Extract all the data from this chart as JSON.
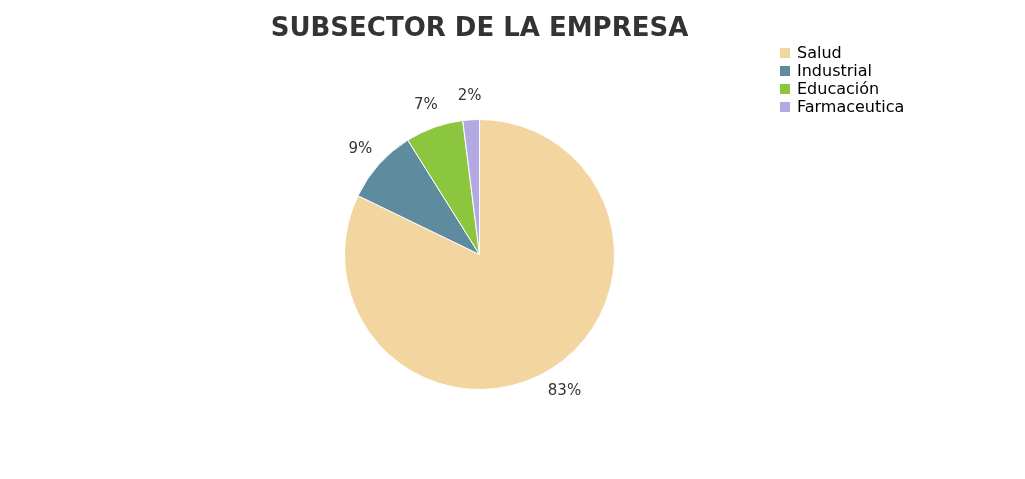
{
  "chart_data": {
    "type": "pie",
    "title": "SUBSECTOR DE LA EMPRESA",
    "categories": [
      "Salud",
      "Industrial",
      "Educación",
      "Farmaceutica"
    ],
    "values": [
      83,
      9,
      7,
      2
    ],
    "colors": [
      "#f3d59f",
      "#5e8b9e",
      "#8cc63e",
      "#b4a8e3"
    ],
    "value_labels": [
      "83%",
      "9%",
      "7%",
      "2%"
    ],
    "legend": "right"
  }
}
